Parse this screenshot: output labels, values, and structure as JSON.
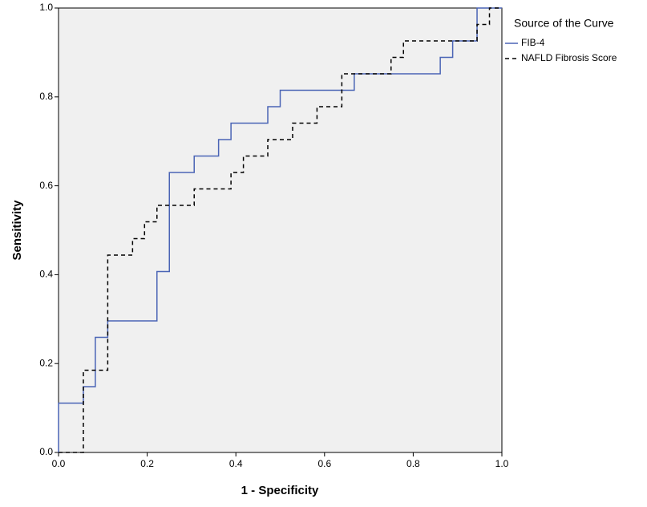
{
  "chart_data": {
    "type": "line",
    "x_label": "1 - Specificity",
    "y_label": "Sensitivity",
    "legend_title": "Source of the Curve",
    "legend": "outside-top-right",
    "background": "#f0f0f0",
    "xlim": [
      0,
      1
    ],
    "ylim": [
      0,
      1
    ],
    "xticks": [
      {
        "value": 0,
        "label": "0.0"
      },
      0.2,
      0.4,
      0.6,
      0.8,
      {
        "value": 1,
        "label": "1.0"
      }
    ],
    "yticks": [
      {
        "value": 0,
        "label": "0.0"
      },
      0.2,
      0.4,
      0.6,
      0.8,
      {
        "value": 1,
        "label": "1.0"
      }
    ],
    "series": [
      {
        "name": "FIB-4",
        "color": "#4a64b5",
        "line_style": "solid",
        "x": [
          0,
          0,
          0.056,
          0.056,
          0.083,
          0.083,
          0.111,
          0.111,
          0.222,
          0.222,
          0.25,
          0.25,
          0.306,
          0.306,
          0.361,
          0.361,
          0.389,
          0.389,
          0.472,
          0.472,
          0.5,
          0.5,
          0.667,
          0.667,
          0.861,
          0.861,
          0.889,
          0.889,
          0.944,
          0.944,
          1
        ],
        "y": [
          0,
          0.111,
          0.111,
          0.148,
          0.148,
          0.259,
          0.259,
          0.296,
          0.296,
          0.407,
          0.407,
          0.63,
          0.63,
          0.667,
          0.667,
          0.704,
          0.704,
          0.741,
          0.741,
          0.778,
          0.778,
          0.815,
          0.815,
          0.852,
          0.852,
          0.889,
          0.889,
          0.926,
          0.926,
          1,
          1
        ]
      },
      {
        "name": "NAFLD Fibrosis Score",
        "color": "#000000",
        "line_style": "dashed",
        "x": [
          0,
          0.056,
          0.056,
          0.111,
          0.111,
          0.167,
          0.167,
          0.194,
          0.194,
          0.222,
          0.222,
          0.306,
          0.306,
          0.389,
          0.389,
          0.417,
          0.417,
          0.472,
          0.472,
          0.528,
          0.528,
          0.583,
          0.583,
          0.639,
          0.639,
          0.75,
          0.75,
          0.778,
          0.778,
          0.944,
          0.944,
          0.972,
          0.972,
          1
        ],
        "y": [
          0,
          0,
          0.185,
          0.185,
          0.444,
          0.444,
          0.481,
          0.481,
          0.519,
          0.519,
          0.556,
          0.556,
          0.593,
          0.593,
          0.63,
          0.63,
          0.667,
          0.667,
          0.704,
          0.704,
          0.741,
          0.741,
          0.778,
          0.778,
          0.852,
          0.852,
          0.889,
          0.889,
          0.926,
          0.926,
          0.963,
          0.963,
          1,
          1
        ]
      }
    ]
  }
}
